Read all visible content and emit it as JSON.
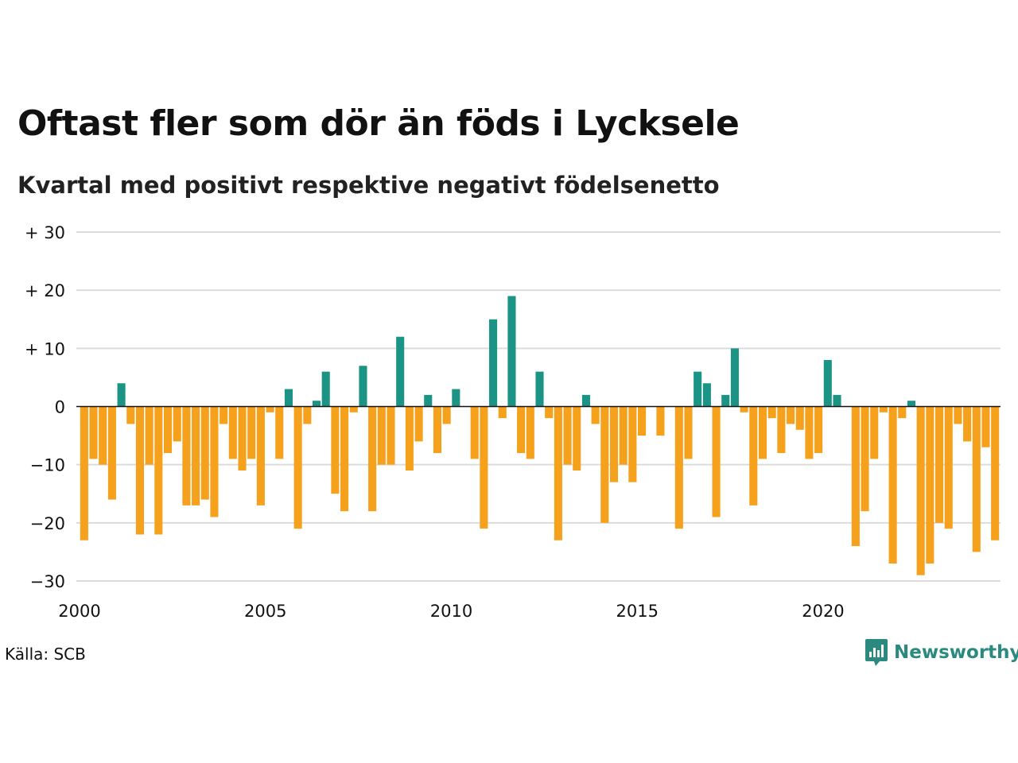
{
  "title": "Oftast fler som dör än föds i Lycksele",
  "subtitle": "Kvartal med positivt respektive negativt födelsenetto",
  "source": "Källa: SCB",
  "logo": {
    "text": "Newsworthy",
    "color": "#2a8a7f",
    "icon": "newsworthy-logo-icon"
  },
  "colors": {
    "positive": "#1b9486",
    "negative": "#f5a11b",
    "grid": "#dcdcdc",
    "zero": "#111111"
  },
  "chart_data": {
    "type": "bar",
    "x_start_year": 2000,
    "quarters_per_year": 4,
    "ylim": [
      -30,
      30
    ],
    "yticks": [
      30,
      20,
      10,
      0,
      -10,
      -20,
      -30
    ],
    "ytick_labels": [
      "+ 30",
      "+ 20",
      "+ 10",
      "0",
      "−10",
      "−20",
      "−30"
    ],
    "xticks": [
      2000,
      2005,
      2010,
      2015,
      2020
    ],
    "xtick_labels": [
      "2000",
      "2005",
      "2010",
      "2015",
      "2020"
    ],
    "values": [
      -23,
      -9,
      -10,
      -16,
      4,
      -3,
      -22,
      -10,
      -22,
      -8,
      -6,
      -17,
      -17,
      -16,
      -19,
      -3,
      -9,
      -11,
      -9,
      -17,
      -1,
      -9,
      3,
      -21,
      -3,
      1,
      6,
      -15,
      -18,
      -1,
      7,
      -18,
      -10,
      -10,
      12,
      -11,
      -6,
      2,
      -8,
      -3,
      3,
      0,
      -9,
      -21,
      15,
      -2,
      19,
      -8,
      -9,
      6,
      -2,
      -23,
      -10,
      -11,
      2,
      -3,
      -20,
      -13,
      -10,
      -13,
      -5,
      0,
      -5,
      0,
      -21,
      -9,
      6,
      4,
      -19,
      2,
      10,
      -1,
      -17,
      -9,
      -2,
      -8,
      -3,
      -4,
      -9,
      -8,
      8,
      2,
      0,
      -24,
      -18,
      -9,
      -1,
      -27,
      -2,
      1,
      -29,
      -27,
      -20,
      -21,
      -3,
      -6,
      -25,
      -7,
      -23
    ]
  }
}
